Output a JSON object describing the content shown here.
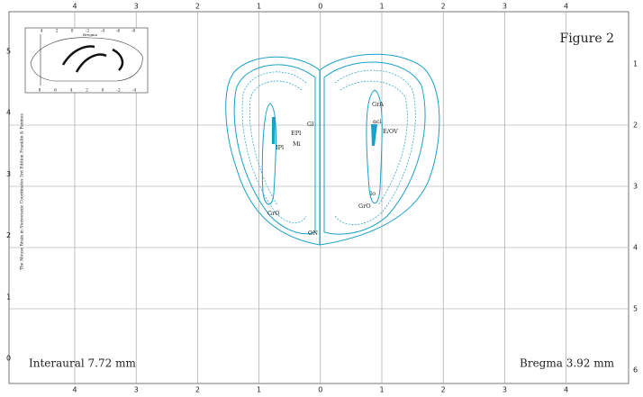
{
  "figure_label": "Figure 2",
  "interaural": "Interaural 7.72 mm",
  "bregma": "Bregma 3.92 mm",
  "credit": "The Mouse Brain in Stereotaxic Coordinates 3rd Edition  Franklin & Paxinos",
  "top_ticks": [
    "4",
    "3",
    "2",
    "1",
    "0",
    "1",
    "2",
    "3",
    "4"
  ],
  "bottom_ticks": [
    "4",
    "3",
    "2",
    "1",
    "0",
    "1",
    "2",
    "3",
    "4"
  ],
  "left_ticks": [
    "5",
    "4",
    "3",
    "2",
    "1",
    "0"
  ],
  "right_ticks": [
    "1",
    "2",
    "3",
    "4",
    "5",
    "6"
  ],
  "inset": {
    "top_ticks": [
      "4",
      "2",
      "0",
      "-2",
      "-4",
      "-6",
      "-8"
    ],
    "bottom_ticks": [
      "8",
      "6",
      "4",
      "2",
      "0",
      "-2",
      "-4"
    ],
    "label": "Bregma"
  },
  "regions": [
    "GrA",
    "aci",
    "E/OV",
    "Gl",
    "EPl",
    "Mi",
    "IPl",
    "GrO",
    "ON",
    "lo",
    "GrO"
  ]
}
